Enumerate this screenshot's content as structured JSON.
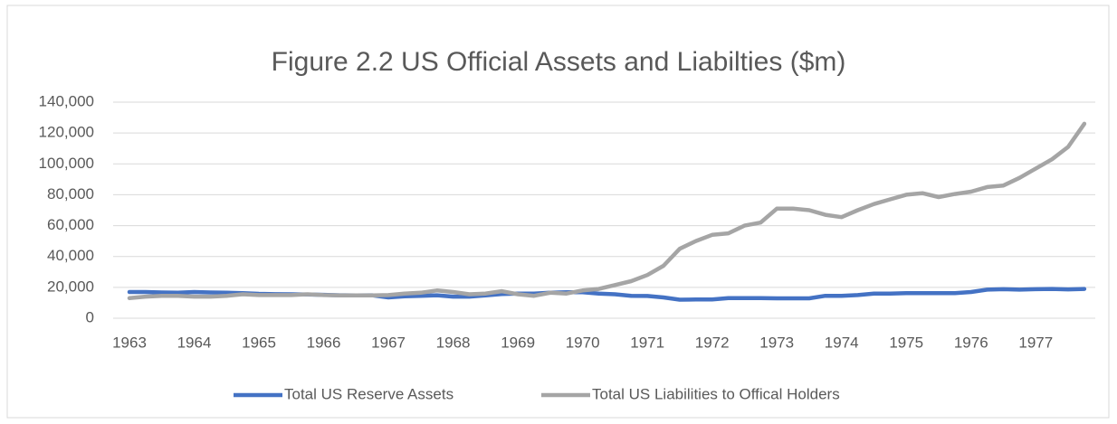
{
  "chart_data": {
    "type": "line",
    "title": "Figure 2.2 US Official Assets and Liabilties ($m)",
    "categories": [
      "1963",
      null,
      null,
      null,
      "1964",
      null,
      null,
      null,
      "1965",
      null,
      null,
      null,
      "1966",
      null,
      null,
      null,
      "1967",
      null,
      null,
      null,
      "1968",
      null,
      null,
      null,
      "1969",
      null,
      null,
      null,
      "1970",
      null,
      null,
      null,
      "1971",
      null,
      null,
      null,
      "1972",
      null,
      null,
      null,
      "1973",
      null,
      null,
      null,
      "1974",
      null,
      null,
      null,
      "1975",
      null,
      null,
      null,
      "1976",
      null,
      null,
      null,
      "1977",
      null,
      null,
      null
    ],
    "series": [
      {
        "name": "Total US Reserve Assets",
        "color": "#4472c4",
        "values": [
          17000,
          17000,
          16700,
          16600,
          17000,
          16700,
          16500,
          16300,
          15800,
          15600,
          15500,
          15400,
          15200,
          14900,
          14800,
          14900,
          13500,
          14200,
          14500,
          14900,
          14000,
          14000,
          14800,
          15700,
          16000,
          16000,
          16500,
          16800,
          16800,
          16000,
          15500,
          14500,
          14400,
          13500,
          12000,
          12100,
          12200,
          13000,
          13000,
          13000,
          12900,
          12900,
          12900,
          14500,
          14500,
          15000,
          16000,
          16000,
          16200,
          16300,
          16300,
          16300,
          17000,
          18500,
          18800,
          18500,
          18800,
          19000,
          18700,
          19000
        ]
      },
      {
        "name": "Total US Liabilities to Offical Holders",
        "color": "#a5a5a5",
        "values": [
          13000,
          14000,
          14500,
          14500,
          14000,
          14000,
          14500,
          15500,
          15000,
          15000,
          15000,
          15500,
          15000,
          14800,
          14800,
          14800,
          15000,
          16000,
          16500,
          18000,
          17000,
          15500,
          16000,
          17500,
          15500,
          14500,
          16500,
          16000,
          18000,
          19000,
          21500,
          24000,
          28000,
          34000,
          45000,
          50000,
          54000,
          55000,
          60000,
          62000,
          71000,
          71000,
          70000,
          67000,
          65500,
          70000,
          74000,
          77000,
          80000,
          81000,
          78500,
          80500,
          82000,
          85000,
          86000,
          91000,
          97000,
          103000,
          111000,
          126000
        ]
      }
    ],
    "ylim": [
      0,
      140000
    ],
    "yticks": [
      {
        "value": 0,
        "label": "0"
      },
      {
        "value": 20000,
        "label": "20,000"
      },
      {
        "value": 40000,
        "label": "40,000"
      },
      {
        "value": 60000,
        "label": "60,000"
      },
      {
        "value": 80000,
        "label": "80,000"
      },
      {
        "value": 100000,
        "label": "100,000"
      },
      {
        "value": 120000,
        "label": "120,000"
      },
      {
        "value": 140000,
        "label": "140,000"
      }
    ],
    "grid": true,
    "legend": "bottom"
  }
}
